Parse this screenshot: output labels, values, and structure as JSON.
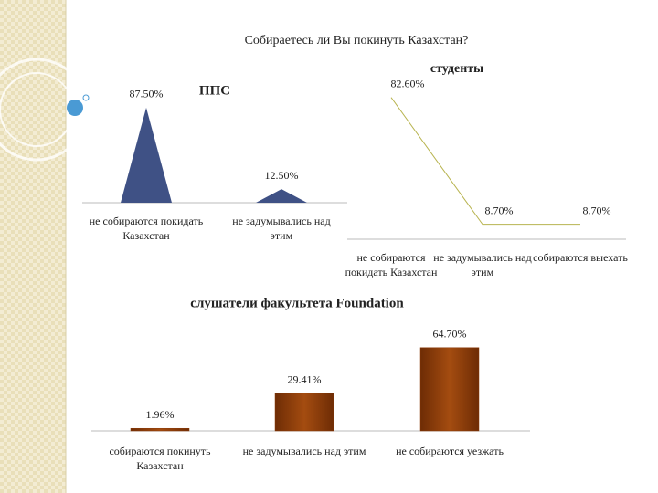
{
  "title": "Собираетесь ли Вы покинуть Казахстан?",
  "charts": [
    {
      "type": "cone",
      "title": "ППС",
      "categories": [
        "не собираются покидать Казахстан",
        "не задумывались над этим"
      ],
      "values": [
        87.5,
        12.5
      ],
      "value_labels": [
        "87.50%",
        "12.50%"
      ],
      "color": "#3f5185"
    },
    {
      "type": "line",
      "title": "студенты",
      "categories": [
        "не собираются покидать Казахстан",
        "не задумывались над этим",
        "собираются выехать"
      ],
      "values": [
        82.6,
        8.7,
        8.7
      ],
      "value_labels": [
        "82.60%",
        "8.70%",
        "8.70%"
      ],
      "color": "#b8b450"
    },
    {
      "type": "bar",
      "title": "слушатели факультета Foundation",
      "categories": [
        "собираются покинуть Казахстан",
        "не задумывались над этим",
        "не собираются уезжать"
      ],
      "values": [
        1.96,
        29.41,
        64.7
      ],
      "value_labels": [
        "1.96%",
        "29.41%",
        "64.70%"
      ],
      "color": "#8a3a08"
    }
  ]
}
